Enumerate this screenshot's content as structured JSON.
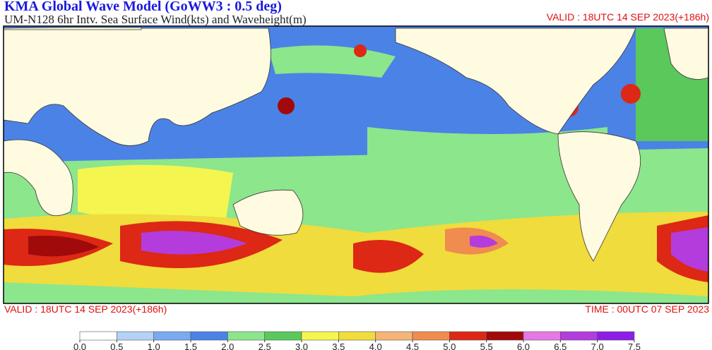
{
  "header": {
    "title": "KMA  Global Wave Model (GoWW3 : 0.5 deg)",
    "subtitle": "UM-N128  6hr Intv. Sea Surface Wind(kts) and Waveheight(m)",
    "valid_top": "VALID : 18UTC 14 SEP 2023(+186h)"
  },
  "footer": {
    "valid": "VALID : 18UTC 14 SEP 2023(+186h)",
    "time": "TIME : 00UTC 07 SEP 2023"
  },
  "colorbar": {
    "ticks": [
      {
        "value": 0,
        "label": "0.0"
      },
      {
        "value": 0.5,
        "label": "0.5"
      },
      {
        "value": 1,
        "label": "1.0"
      },
      {
        "value": 1.5,
        "label": "1.5"
      },
      {
        "value": 2,
        "label": "2.0"
      },
      {
        "value": 2.5,
        "label": "2.5"
      },
      {
        "value": 3,
        "label": "3.0"
      },
      {
        "value": 3.5,
        "label": "3.5"
      },
      {
        "value": 4,
        "label": "4.0"
      },
      {
        "value": 4.5,
        "label": "4.5"
      },
      {
        "value": 5,
        "label": "5.0"
      },
      {
        "value": 5.5,
        "label": "5.5"
      },
      {
        "value": 6,
        "label": "6.0"
      },
      {
        "value": 6.5,
        "label": "6.5"
      },
      {
        "value": 7,
        "label": "7.0"
      },
      {
        "value": 7.5,
        "label": "7.5"
      }
    ],
    "colors": [
      "#ffffff",
      "#b4d2f5",
      "#78aaf0",
      "#4b82e6",
      "#8ce68c",
      "#5ac85a",
      "#f5f550",
      "#f0dc3c",
      "#f5b478",
      "#f08c50",
      "#dc2814",
      "#a00a0a",
      "#e678e6",
      "#b43cdc",
      "#8c1ee6"
    ]
  }
}
